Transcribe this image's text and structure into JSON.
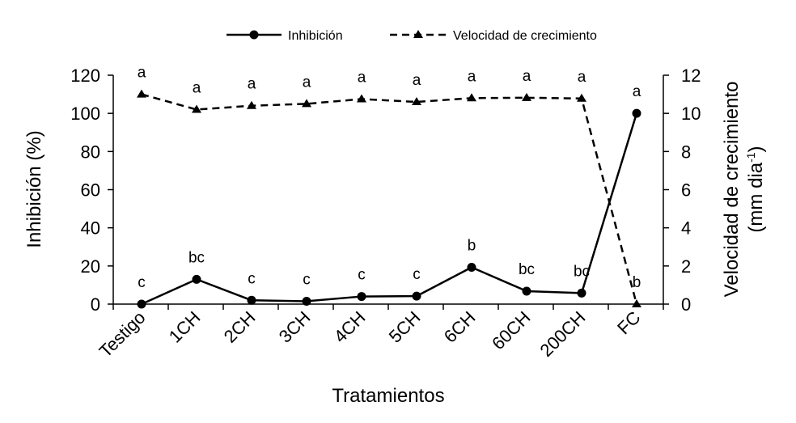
{
  "chart_data": {
    "type": "line",
    "title": "",
    "categories": [
      "Testigo",
      "1CH",
      "2CH",
      "3CH",
      "4CH",
      "5CH",
      "6CH",
      "60CH",
      "200CH",
      "FC"
    ],
    "xlabel": "Tratamientos",
    "ylabel": "Inhibición (%)",
    "y2label_line1": "Velocidad de crecimiento",
    "y2label_line2_prefix": "(mm dia",
    "y2label_line2_sup": "-1",
    "y2label_line2_suffix": ")",
    "ylim": [
      0,
      120
    ],
    "y2lim": [
      0,
      12
    ],
    "yticks": [
      "0",
      "20",
      "40",
      "60",
      "80",
      "100",
      "120"
    ],
    "y2ticks": [
      "0",
      "2",
      "4",
      "6",
      "8",
      "10",
      "12"
    ],
    "series": [
      {
        "name": "Inhibición",
        "axis": "left",
        "style": "solid-circle",
        "values": [
          0,
          13,
          2,
          1.5,
          4,
          4.2,
          19.3,
          6.8,
          5.8,
          100
        ],
        "labels": [
          "c",
          "bc",
          "c",
          "c",
          "c",
          "c",
          "b",
          "bc",
          "bc",
          "a"
        ]
      },
      {
        "name": "Velocidad de crecimiento",
        "axis": "right",
        "style": "dashed-triangle",
        "values": [
          11.0,
          10.2,
          10.4,
          10.5,
          10.75,
          10.6,
          10.8,
          10.82,
          10.78,
          0
        ],
        "labels": [
          "a",
          "a",
          "a",
          "a",
          "a",
          "a",
          "a",
          "a",
          "a",
          "b"
        ]
      }
    ],
    "legend_position": "top-center"
  },
  "colors": {
    "line": "#000000",
    "background": "#ffffff"
  }
}
